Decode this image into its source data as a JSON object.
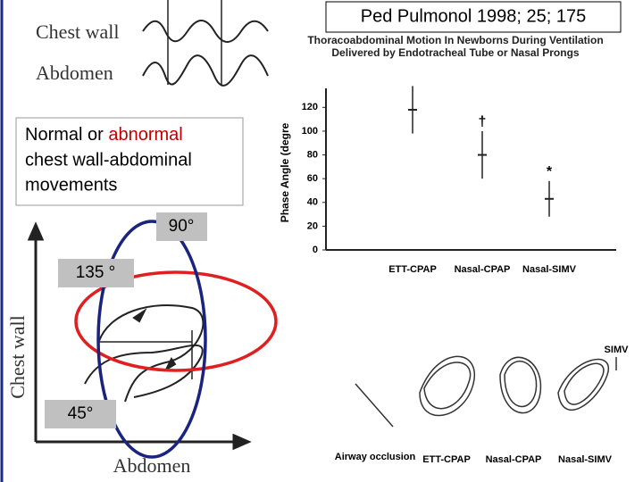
{
  "citation": "Ped Pulmonol 1998; 25; 175",
  "paper_title": "Thoracoabdominal Motion In Newborns During Ventilation Delivered by Endotracheal Tube or Nasal Prongs",
  "trace_labels": [
    "Chest wall",
    "Abdomen"
  ],
  "caption": [
    "Normal or ",
    "abnormal",
    " chest wall-abdominal",
    "movements"
  ],
  "angles": [
    "90°",
    "135 °",
    "45°"
  ],
  "loop_axes": {
    "y": "Chest wall",
    "x": "Abdomen"
  },
  "chart_data": {
    "type": "errorbar",
    "y_label": "Phase Angle (degre",
    "categories": [
      "ETT-CPAP",
      "Nasal-CPAP",
      "Nasal-SIMV"
    ],
    "values": [
      118,
      80,
      43
    ],
    "errors": [
      20,
      20,
      15
    ],
    "markers": [
      null,
      "†",
      "*"
    ],
    "ylim": [
      0,
      130
    ],
    "yticks": [
      0,
      20,
      40,
      60,
      80,
      100,
      120
    ],
    "color": "#222"
  },
  "loops": {
    "arrow_label": "SIMV",
    "labels": [
      "Airway occlusion",
      "ETT-CPAP",
      "Nasal-CPAP",
      "Nasal-SIMV"
    ]
  }
}
